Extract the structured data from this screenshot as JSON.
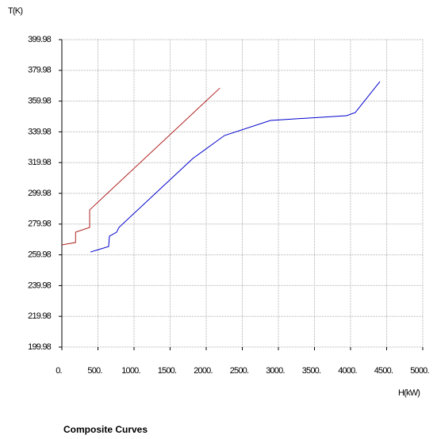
{
  "chart_data": {
    "type": "line",
    "title": "Composite Curves",
    "xlabel": "H(kW)",
    "ylabel": "T(K)",
    "xlim": [
      0,
      5000
    ],
    "ylim": [
      199.98,
      399.98
    ],
    "xticks": [
      {
        "value": 0,
        "label": "0."
      },
      {
        "value": 500,
        "label": "500."
      },
      {
        "value": 1000,
        "label": "1000."
      },
      {
        "value": 1500,
        "label": "1500."
      },
      {
        "value": 2000,
        "label": "2000."
      },
      {
        "value": 2500,
        "label": "2500."
      },
      {
        "value": 3000,
        "label": "3000."
      },
      {
        "value": 3500,
        "label": "3500."
      },
      {
        "value": 4000,
        "label": "4000."
      },
      {
        "value": 4500,
        "label": "4500."
      },
      {
        "value": 5000,
        "label": "5000."
      }
    ],
    "yticks": [
      199.98,
      219.98,
      239.98,
      259.98,
      279.98,
      299.98,
      319.98,
      339.98,
      359.98,
      379.98,
      399.98
    ],
    "grid": true,
    "series": [
      {
        "color": "#b22222",
        "x": [
          0,
          190,
          190,
          385,
          385,
          2190
        ],
        "values": [
          266.5,
          268,
          274.7,
          277.8,
          289.2,
          368.5
        ]
      },
      {
        "color": "#0000cc",
        "x": [
          396,
          648,
          659,
          758,
          791,
          1813,
          2253,
          2890,
          3945,
          4066,
          4407
        ],
        "values": [
          261.8,
          265.4,
          272.1,
          274.7,
          277.8,
          322.6,
          337.6,
          347.4,
          350.5,
          352.6,
          372.7
        ]
      }
    ]
  }
}
